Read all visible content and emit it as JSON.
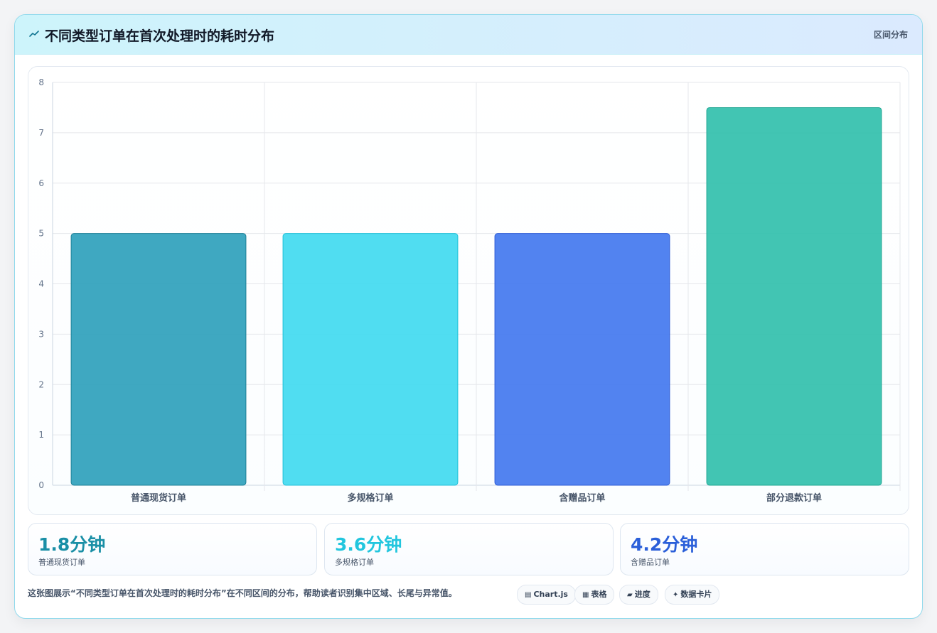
{
  "header": {
    "icon": "chart-trend-icon",
    "title": "不同类型订单在首次处理时的耗时分布",
    "badge": "区间分布"
  },
  "chart_data": {
    "type": "bar",
    "categories": [
      "普通现货订单",
      "多规格订单",
      "含赠品订单",
      "部分退款订单"
    ],
    "values": [
      5,
      5,
      5,
      7.5
    ],
    "ylim": [
      0,
      8
    ],
    "yticks": [
      "0",
      "1",
      "2",
      "3",
      "4",
      "5",
      "6",
      "7",
      "8"
    ],
    "grid": true,
    "legend": "none",
    "colors": [
      "#2a9fba",
      "#3dd9ef",
      "#3f76ee",
      "#2ebfab"
    ],
    "border_colors": [
      "#1b7f96",
      "#1fc0d8",
      "#2c5bd6",
      "#1fa692"
    ]
  },
  "stats": [
    {
      "value": "1.8分钟",
      "label": "普通现货订单",
      "color": "#1a8fa6"
    },
    {
      "value": "3.6分钟",
      "label": "多规格订单",
      "color": "#22c6de"
    },
    {
      "value": "4.2分钟",
      "label": "含赠品订单",
      "color": "#2b5fd9"
    }
  ],
  "footer": {
    "description": "这张图展示“不同类型订单在首次处理时的耗时分布”在不同区间的分布，帮助读者识别集中区域、长尾与异常值。",
    "tags": [
      {
        "icon": "chart-icon",
        "glyph": "▤",
        "label": "Chart.js"
      },
      {
        "icon": "table-icon",
        "glyph": "▦",
        "label": "表格"
      },
      {
        "icon": "progress-icon",
        "glyph": "▰",
        "label": "进度"
      },
      {
        "icon": "sparkle-icon",
        "glyph": "✦",
        "label": "数据卡片"
      }
    ]
  }
}
